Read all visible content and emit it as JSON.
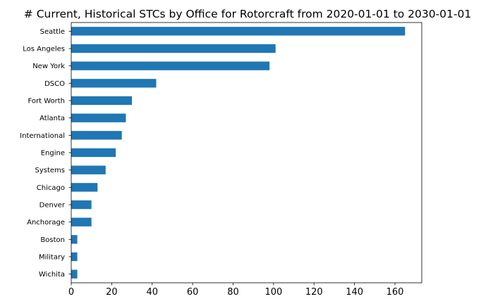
{
  "chart_data": {
    "type": "bar",
    "orientation": "horizontal",
    "title": "# Current, Historical STCs by Office for Rotorcraft from 2020-01-01 to 2030-01-01",
    "xlabel": "",
    "ylabel": "",
    "categories": [
      "Seattle",
      "Los Angeles",
      "New York",
      "DSCO",
      "Fort Worth",
      "Atlanta",
      "International",
      "Engine",
      "Systems",
      "Chicago",
      "Denver",
      "Anchorage",
      "Boston",
      "Military",
      "Wichita"
    ],
    "values": [
      165,
      101,
      98,
      42,
      30,
      27,
      25,
      22,
      17,
      13,
      10,
      10,
      3,
      3,
      3
    ],
    "xlim": [
      0,
      173.25
    ],
    "x_ticks": [
      0,
      20,
      40,
      60,
      80,
      100,
      120,
      140,
      160
    ],
    "x_tick_labels": [
      "0",
      "20",
      "40",
      "60",
      "80",
      "100",
      "120",
      "140",
      "160"
    ],
    "grid": false,
    "legend": "none",
    "bar_color": "#1f77b4"
  }
}
